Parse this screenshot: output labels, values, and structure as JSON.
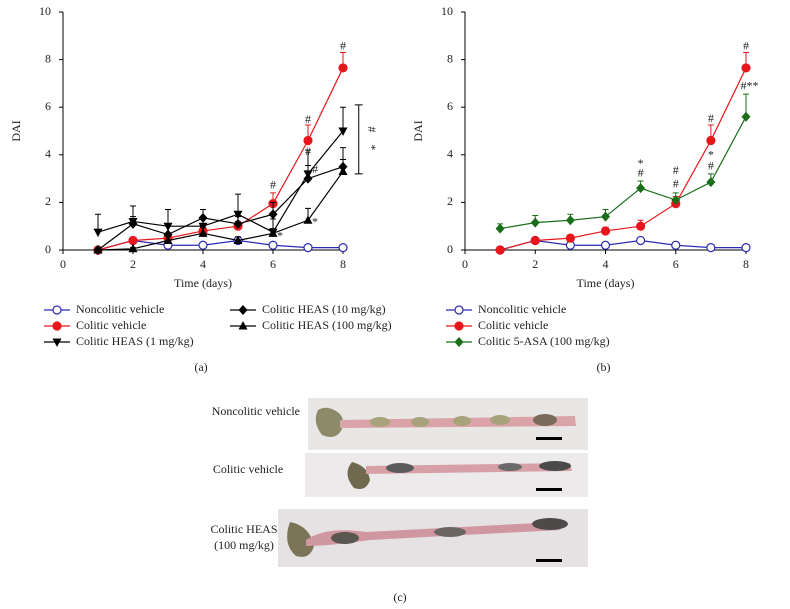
{
  "chart_data": [
    {
      "type": "line",
      "panel_label": "(a)",
      "x_label": "Time (days)",
      "y_label": "DAI",
      "x": [
        1,
        2,
        3,
        4,
        5,
        6,
        7,
        8
      ],
      "xlim": [
        0,
        8
      ],
      "xticks": [
        0,
        2,
        4,
        6,
        8
      ],
      "ylim": [
        0,
        10
      ],
      "yticks": [
        0,
        2,
        4,
        6,
        8,
        10
      ],
      "series": [
        {
          "name": "Noncolitic vehicle",
          "color": "#2b2bb3",
          "marker": "circle-open",
          "values": [
            0,
            0.4,
            0.2,
            0.2,
            0.4,
            0.2,
            0.1,
            0.1
          ],
          "errors": [
            0,
            0.1,
            0.1,
            0.1,
            0.1,
            0.1,
            0.05,
            0.05
          ]
        },
        {
          "name": "Colitic vehicle",
          "color": "#e8161b",
          "marker": "circle",
          "values": [
            0,
            0.4,
            0.5,
            0.8,
            1.0,
            1.95,
            4.6,
            7.65
          ],
          "errors": [
            0,
            0.1,
            0.1,
            0.15,
            0.2,
            0.45,
            0.65,
            0.65
          ]
        },
        {
          "name": "Colitic HEAS (1 mg/kg)",
          "color": "#000000",
          "marker": "triangle-down",
          "values": [
            0.75,
            1.2,
            1.0,
            1.0,
            1.5,
            0.75,
            3.2,
            5.0
          ],
          "errors": [
            0.75,
            0.65,
            0.7,
            0.7,
            0.85,
            0.55,
            1.0,
            1.0
          ]
        },
        {
          "name": "Colitic HEAS (10 mg/kg)",
          "color": "#000000",
          "marker": "diamond",
          "values": [
            0,
            1.1,
            0.65,
            1.35,
            1.1,
            1.5,
            3.0,
            3.5
          ],
          "errors": [
            0,
            0.3,
            0.4,
            0.35,
            0.3,
            0.5,
            0.55,
            0.8
          ]
        },
        {
          "name": "Colitic HEAS (100 mg/kg)",
          "color": "#000000",
          "marker": "triangle-up",
          "values": [
            0,
            0.05,
            0.4,
            0.7,
            0.4,
            0.7,
            1.25,
            3.3
          ],
          "errors": [
            0,
            0.05,
            0.2,
            0.25,
            0.15,
            0.2,
            0.5,
            0.5
          ]
        }
      ],
      "annotations": [
        {
          "text": "#",
          "x": 8,
          "y": 8.55
        },
        {
          "text": "#",
          "x": 7,
          "y": 5.45
        },
        {
          "text": "#",
          "x": 7,
          "y": 4.1
        },
        {
          "text": "#",
          "x": 7.2,
          "y": 3.35
        },
        {
          "text": "*",
          "x": 7.2,
          "y": 1.15
        },
        {
          "text": "#",
          "x": 6,
          "y": 2.7
        },
        {
          "text": "*",
          "x": 6.2,
          "y": 0.55
        }
      ],
      "bracket": {
        "x": 8.45,
        "y": [
          3.2,
          6.1
        ],
        "labels": [
          "#",
          "*"
        ]
      }
    },
    {
      "type": "line",
      "panel_label": "(b)",
      "x_label": "Time (days)",
      "y_label": "DAI",
      "x": [
        1,
        2,
        3,
        4,
        5,
        6,
        7,
        8
      ],
      "xlim": [
        0,
        8
      ],
      "xticks": [
        0,
        2,
        4,
        6,
        8
      ],
      "ylim": [
        0,
        10
      ],
      "yticks": [
        0,
        2,
        4,
        6,
        8,
        10
      ],
      "series": [
        {
          "name": "Noncolitic vehicle",
          "color": "#2b2bb3",
          "marker": "circle-open",
          "values": [
            0,
            0.4,
            0.2,
            0.2,
            0.4,
            0.2,
            0.1,
            0.1
          ],
          "errors": [
            0,
            0.1,
            0.1,
            0.1,
            0.1,
            0.1,
            0.05,
            0.05
          ]
        },
        {
          "name": "Colitic vehicle",
          "color": "#e8161b",
          "marker": "circle",
          "values": [
            0,
            0.4,
            0.5,
            0.8,
            1.0,
            1.95,
            4.6,
            7.65
          ],
          "errors": [
            0,
            0.1,
            0.1,
            0.15,
            0.25,
            0.3,
            0.65,
            0.65
          ]
        },
        {
          "name": "Colitic 5-ASA (100 mg/kg)",
          "color": "#1a6e1a",
          "marker": "diamond",
          "values": [
            0.9,
            1.15,
            1.25,
            1.4,
            2.6,
            2.1,
            2.85,
            5.6
          ],
          "errors": [
            0.2,
            0.3,
            0.25,
            0.3,
            0.3,
            0.3,
            0.35,
            0.95
          ]
        }
      ],
      "annotations": [
        {
          "text": "#",
          "x": 8,
          "y": 8.55
        },
        {
          "text": "#**",
          "x": 8.1,
          "y": 6.85
        },
        {
          "text": "#",
          "x": 7,
          "y": 5.5
        },
        {
          "text": "*",
          "x": 7,
          "y": 3.95
        },
        {
          "text": "#",
          "x": 7,
          "y": 3.5
        },
        {
          "text": "#",
          "x": 6,
          "y": 3.3
        },
        {
          "text": "#",
          "x": 6,
          "y": 2.75
        },
        {
          "text": "*",
          "x": 5,
          "y": 3.6
        },
        {
          "text": "#",
          "x": 5,
          "y": 3.2
        }
      ]
    }
  ],
  "photos": {
    "panel_label": "(c)",
    "labels": [
      [
        "Noncolitic vehicle"
      ],
      [
        "Colitic vehicle"
      ],
      [
        "Colitic HEAS",
        "(100 mg/kg)"
      ]
    ]
  }
}
